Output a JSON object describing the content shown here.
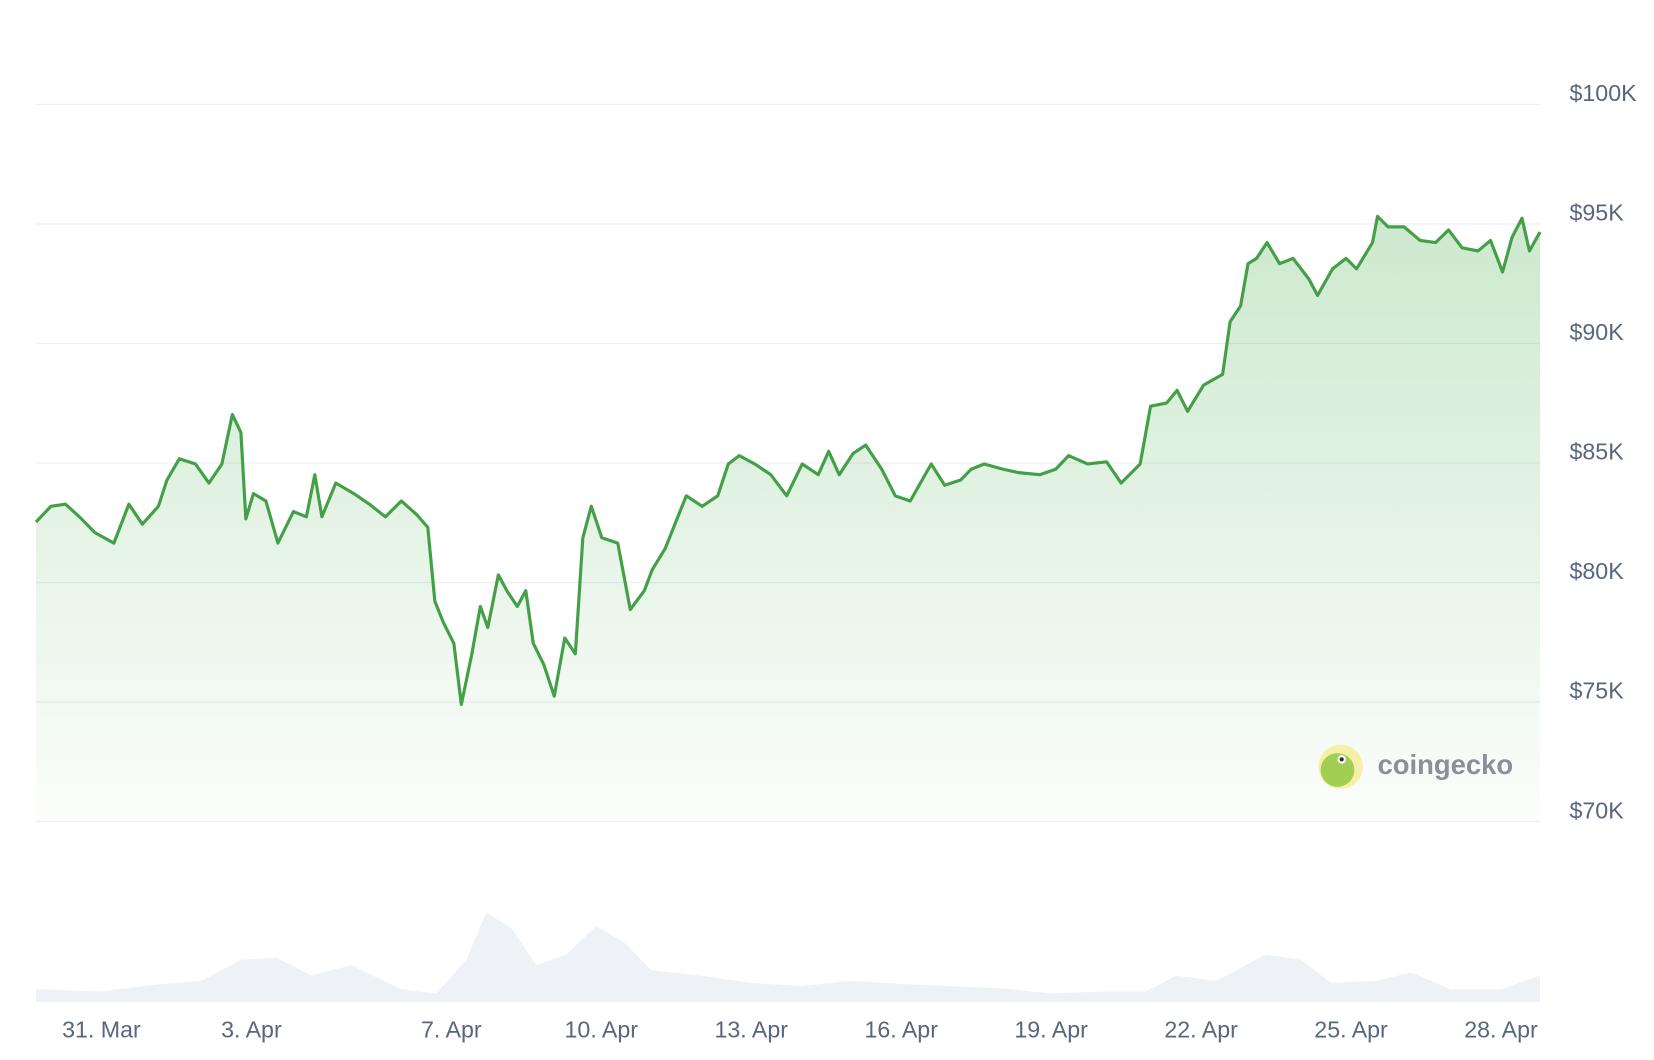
{
  "chart_data": {
    "type": "line",
    "x": [
      -1.31,
      -1.01,
      -0.72,
      -0.44,
      -0.13,
      0.25,
      0.55,
      0.82,
      1.14,
      1.31,
      1.56,
      1.88,
      2.15,
      2.41,
      2.62,
      2.79,
      2.89,
      3.04,
      3.29,
      3.53,
      3.84,
      4.1,
      4.27,
      4.41,
      4.69,
      5.05,
      5.36,
      5.68,
      6.0,
      6.31,
      6.53,
      6.67,
      6.84,
      7.05,
      7.2,
      7.41,
      7.58,
      7.73,
      7.94,
      8.11,
      8.32,
      8.49,
      8.64,
      8.85,
      9.06,
      9.27,
      9.48,
      9.63,
      9.8,
      10.01,
      10.33,
      10.58,
      10.86,
      11.02,
      11.28,
      11.49,
      11.7,
      12.02,
      12.33,
      12.54,
      12.76,
      13.07,
      13.39,
      13.71,
      14.02,
      14.34,
      14.55,
      14.76,
      15.04,
      15.29,
      15.61,
      15.88,
      16.18,
      16.6,
      16.87,
      17.19,
      17.4,
      17.66,
      18.04,
      18.35,
      18.77,
      19.09,
      19.35,
      19.73,
      20.11,
      20.4,
      20.78,
      20.99,
      21.31,
      21.52,
      21.73,
      22.05,
      22.43,
      22.58,
      22.79,
      22.94,
      23.11,
      23.32,
      23.57,
      23.84,
      24.16,
      24.33,
      24.63,
      24.9,
      25.11,
      25.43,
      25.53,
      25.74,
      26.06,
      26.38,
      26.69,
      26.95,
      27.22,
      27.54,
      27.79,
      28.03,
      28.22,
      28.42,
      28.57,
      28.78
    ],
    "series": [
      {
        "color": "#43a047",
        "values": [
          82530,
          83190,
          83280,
          82750,
          82090,
          81650,
          83280,
          82440,
          83190,
          84290,
          85180,
          84960,
          84160,
          84960,
          87030,
          86280,
          82660,
          83720,
          83410,
          81650,
          82970,
          82750,
          84510,
          82750,
          84160,
          83720,
          83280,
          82750,
          83410,
          82840,
          82310,
          79220,
          78340,
          77460,
          74900,
          77020,
          79000,
          78120,
          80320,
          79660,
          79000,
          79660,
          77460,
          76570,
          75250,
          77680,
          77020,
          81870,
          83190,
          81870,
          81650,
          78870,
          79660,
          80540,
          81430,
          82530,
          83630,
          83190,
          83630,
          84960,
          85310,
          84960,
          84510,
          83630,
          84960,
          84510,
          85490,
          84510,
          85400,
          85750,
          84740,
          83630,
          83410,
          84960,
          84070,
          84290,
          84740,
          84960,
          84740,
          84600,
          84510,
          84740,
          85310,
          84960,
          85050,
          84160,
          84960,
          87380,
          87510,
          88040,
          87160,
          88260,
          88710,
          90910,
          91570,
          93340,
          93560,
          94220,
          93340,
          93560,
          92680,
          92010,
          93120,
          93560,
          93120,
          94220,
          95320,
          94880,
          94880,
          94310,
          94220,
          94750,
          94000,
          93870,
          94310,
          92990,
          94440,
          95240,
          93870,
          94660
        ]
      },
      {
        "color": "#eef1f5",
        "axis": "y2",
        "x": [
          -1.31,
          0,
          1,
          2,
          2.8,
          3.5,
          4.2,
          5,
          6,
          6.7,
          7.3,
          7.7,
          8.2,
          8.7,
          9.3,
          9.9,
          10.5,
          11,
          12,
          13,
          14,
          15,
          16,
          17,
          18,
          19,
          20,
          20.9,
          21.5,
          22.3,
          23.3,
          24,
          24.6,
          25.5,
          26.2,
          27,
          28,
          28.78
        ],
        "values": [
          12,
          10,
          16,
          20,
          40,
          42,
          25,
          35,
          12,
          8,
          40,
          85,
          70,
          35,
          45,
          72,
          55,
          30,
          25,
          18,
          15,
          20,
          17,
          15,
          13,
          8,
          10,
          10,
          25,
          20,
          45,
          40,
          18,
          20,
          28,
          12,
          12,
          25
        ]
      }
    ],
    "xlim": [
      -1.31,
      28.78
    ],
    "xticks": [
      {
        "value": 0,
        "label": "31. Mar"
      },
      {
        "value": 3,
        "label": "3. Apr"
      },
      {
        "value": 7,
        "label": "7. Apr"
      },
      {
        "value": 10,
        "label": "10. Apr"
      },
      {
        "value": 13,
        "label": "13. Apr"
      },
      {
        "value": 16,
        "label": "16. Apr"
      },
      {
        "value": 19,
        "label": "19. Apr"
      },
      {
        "value": 22,
        "label": "22. Apr"
      },
      {
        "value": 25,
        "label": "25. Apr"
      },
      {
        "value": 28,
        "label": "28. Apr"
      }
    ],
    "ylim": [
      70000,
      100000
    ],
    "yticks": [
      {
        "value": 70000,
        "label": "$70K"
      },
      {
        "value": 75000,
        "label": "$75K"
      },
      {
        "value": 80000,
        "label": "$80K"
      },
      {
        "value": 85000,
        "label": "$85K"
      },
      {
        "value": 90000,
        "label": "$90K"
      },
      {
        "value": 95000,
        "label": "$95K"
      },
      {
        "value": 100000,
        "label": "$100K"
      }
    ],
    "y2lim": [
      0,
      100
    ],
    "grid": true,
    "watermark": "coingecko"
  }
}
